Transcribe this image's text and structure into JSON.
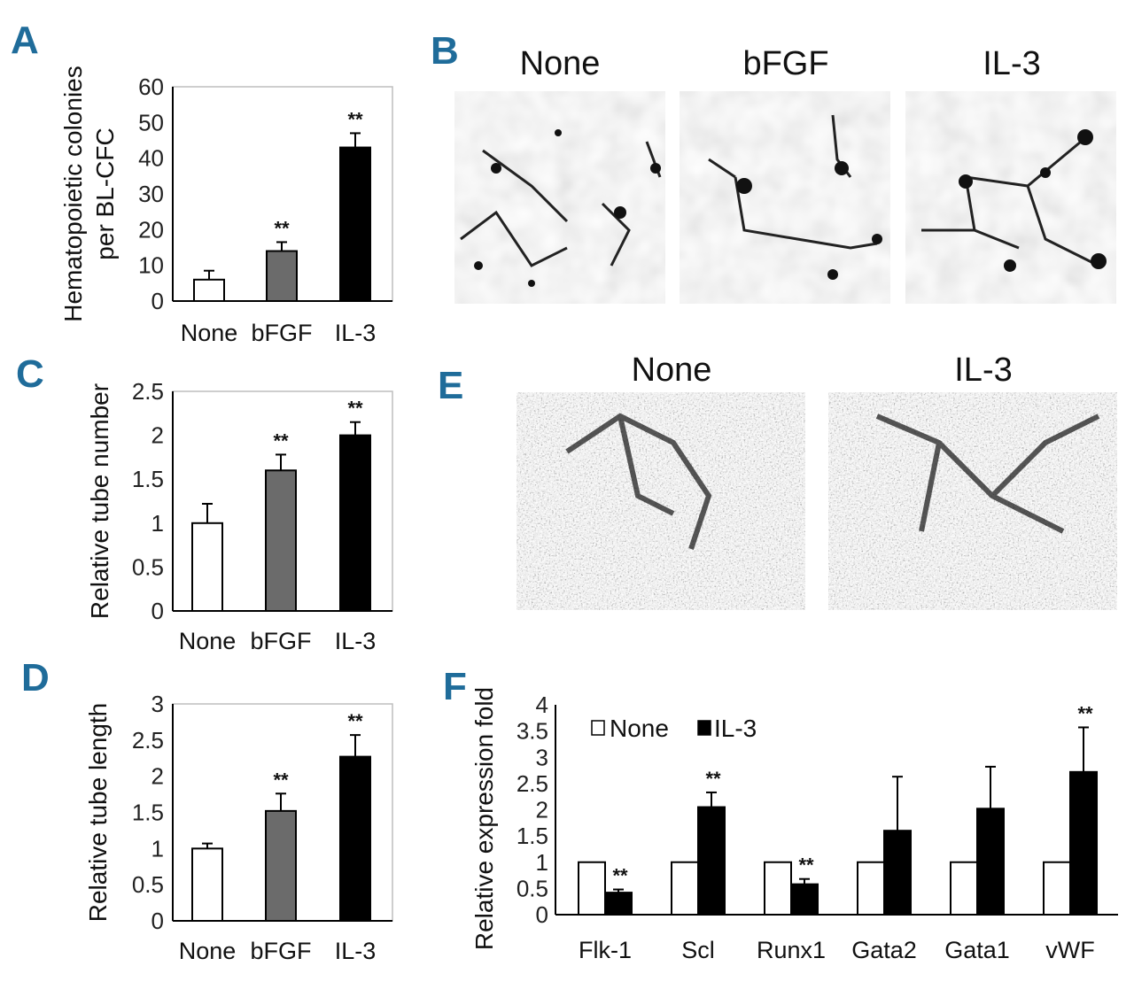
{
  "panels": {
    "A": "A",
    "B": "B",
    "C": "C",
    "D": "D",
    "E": "E",
    "F": "F"
  },
  "microscopy": {
    "B": {
      "labels": [
        "None",
        "bFGF",
        "IL-3"
      ]
    },
    "E": {
      "labels": [
        "None",
        "IL-3"
      ]
    }
  },
  "chart_data": [
    {
      "id": "A",
      "type": "bar",
      "categories": [
        "None",
        "bFGF",
        "IL-3"
      ],
      "values": [
        6,
        14,
        43
      ],
      "errors": [
        2.5,
        2.5,
        4
      ],
      "significance": [
        "",
        "**",
        "**"
      ],
      "bar_colors": [
        "#ffffff",
        "#6b6b6b",
        "#000000"
      ],
      "ylabel_lines": [
        "Hematopoietic colonies",
        "per BL-CFC"
      ],
      "ylim": [
        0,
        60
      ],
      "yticks": [
        "0",
        "10",
        "20",
        "30",
        "40",
        "50",
        "60"
      ]
    },
    {
      "id": "C",
      "type": "bar",
      "categories": [
        "None",
        "bFGF",
        "IL-3"
      ],
      "values": [
        1,
        1.6,
        2
      ],
      "errors": [
        0.22,
        0.18,
        0.15
      ],
      "significance": [
        "",
        "**",
        "**"
      ],
      "bar_colors": [
        "#ffffff",
        "#6b6b6b",
        "#000000"
      ],
      "ylabel_lines": [
        "Relative tube number"
      ],
      "ylim": [
        0,
        2.5
      ],
      "yticks": [
        "0",
        "0.5",
        "1",
        "1.5",
        "2",
        "2.5"
      ]
    },
    {
      "id": "D",
      "type": "bar",
      "categories": [
        "None",
        "bFGF",
        "IL-3"
      ],
      "values": [
        1,
        1.52,
        2.27
      ],
      "errors": [
        0.07,
        0.24,
        0.3
      ],
      "significance": [
        "",
        "**",
        "**"
      ],
      "bar_colors": [
        "#ffffff",
        "#6b6b6b",
        "#000000"
      ],
      "ylabel_lines": [
        "Relative tube length"
      ],
      "ylim": [
        0,
        3
      ],
      "yticks": [
        "0",
        "0.5",
        "1",
        "1.5",
        "2",
        "2.5",
        "3"
      ]
    },
    {
      "id": "F",
      "type": "bar",
      "categories": [
        "Flk-1",
        "Scl",
        "Runx1",
        "Gata2",
        "Gata1",
        "vWF"
      ],
      "series": [
        {
          "name": "None",
          "color": "#ffffff",
          "values": [
            1,
            1,
            1,
            1,
            1,
            1
          ],
          "errors": [
            0,
            0,
            0,
            0,
            0,
            0
          ],
          "significance": [
            "",
            "",
            "",
            "",
            "",
            ""
          ]
        },
        {
          "name": "IL-3",
          "color": "#000000",
          "values": [
            0.42,
            2.05,
            0.58,
            1.6,
            2.02,
            2.72
          ],
          "errors": [
            0.06,
            0.28,
            0.1,
            1.03,
            0.8,
            0.85
          ],
          "significance": [
            "**",
            "**",
            "**",
            "",
            "",
            "**"
          ]
        }
      ],
      "ylabel_lines": [
        "Relative expression fold"
      ],
      "ylim": [
        0,
        4
      ],
      "yticks": [
        "0",
        "0.5",
        "1",
        "1.5",
        "2",
        "2.5",
        "3",
        "3.5",
        "4"
      ]
    }
  ]
}
